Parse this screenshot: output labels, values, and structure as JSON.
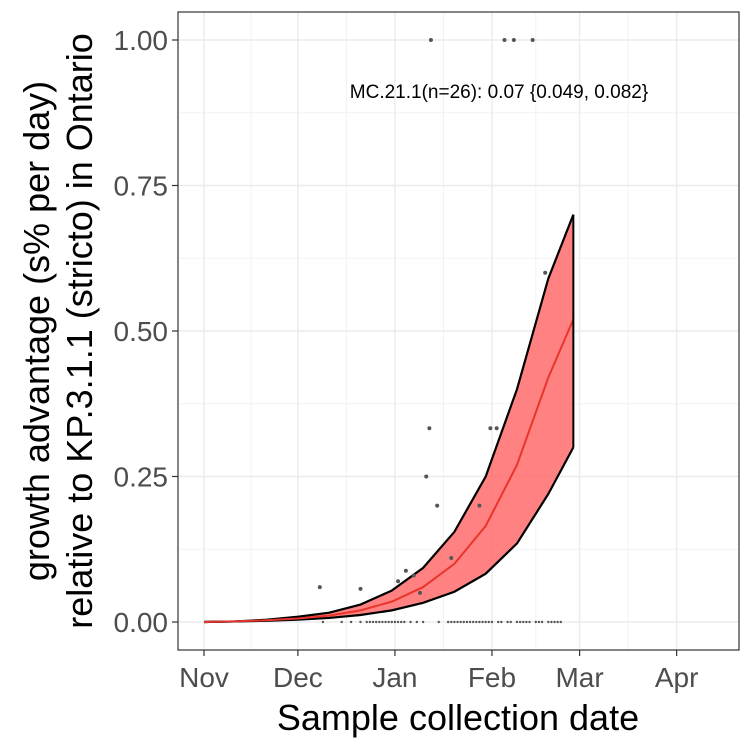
{
  "chart_data": {
    "type": "scatter",
    "xlabel": "Sample collection date",
    "ylabel_line1": "growth advantage (s% per day)",
    "ylabel_line2": "relative to KP.3.1.1 (stricto) in Ontario",
    "annotation": "MC.21.1(n=26): 0.07 {0.049, 0.082}",
    "x_ticks": [
      "Nov",
      "Dec",
      "Jan",
      "Feb",
      "Mar",
      "Apr"
    ],
    "y_ticks": [
      "0.00",
      "0.25",
      "0.50",
      "0.75",
      "1.00"
    ],
    "ylim": [
      -0.05,
      1.05
    ],
    "grid": true,
    "colors": {
      "ribbon": "#ff6b6b",
      "fit_line": "#e8352b",
      "bound_line": "#000000",
      "point": "#555555"
    },
    "fit": {
      "x_days": [
        0,
        10,
        20,
        30,
        40,
        50,
        60,
        70,
        80,
        90,
        100,
        110,
        118
      ],
      "mean": [
        0.0,
        0.001,
        0.003,
        0.006,
        0.011,
        0.02,
        0.035,
        0.06,
        0.1,
        0.165,
        0.27,
        0.42,
        0.52
      ],
      "lower": [
        0.0,
        0.001,
        0.002,
        0.004,
        0.007,
        0.012,
        0.02,
        0.033,
        0.052,
        0.083,
        0.135,
        0.22,
        0.3
      ],
      "upper": [
        0.0,
        0.001,
        0.004,
        0.009,
        0.016,
        0.03,
        0.054,
        0.093,
        0.155,
        0.25,
        0.4,
        0.59,
        0.7
      ]
    },
    "points": [
      {
        "x": 37,
        "y": 0.06
      },
      {
        "x": 50,
        "y": 0.057
      },
      {
        "x": 62,
        "y": 0.07
      },
      {
        "x": 64.5,
        "y": 0.088
      },
      {
        "x": 67,
        "y": 0.08
      },
      {
        "x": 69,
        "y": 0.05
      },
      {
        "x": 71,
        "y": 0.25
      },
      {
        "x": 72,
        "y": 0.333
      },
      {
        "x": 72.5,
        "y": 1.0
      },
      {
        "x": 74.5,
        "y": 0.2
      },
      {
        "x": 79,
        "y": 0.11
      },
      {
        "x": 88,
        "y": 0.2
      },
      {
        "x": 91.5,
        "y": 0.333
      },
      {
        "x": 93.5,
        "y": 0.333
      },
      {
        "x": 96,
        "y": 1.0
      },
      {
        "x": 99,
        "y": 1.0
      },
      {
        "x": 105,
        "y": 1.0
      },
      {
        "x": 109,
        "y": 0.6
      }
    ],
    "zero_points_x": [
      38,
      44,
      47,
      50,
      52,
      53,
      54,
      55,
      56,
      57,
      58,
      59,
      60,
      61,
      62,
      63,
      64,
      66,
      68,
      70,
      75,
      78,
      79,
      80,
      81,
      82,
      83,
      84,
      85,
      86,
      87,
      88,
      89,
      90,
      91,
      92,
      94,
      95,
      97,
      98,
      100,
      101,
      102,
      103,
      104,
      106,
      107,
      108,
      110,
      111,
      112,
      113,
      114
    ]
  }
}
